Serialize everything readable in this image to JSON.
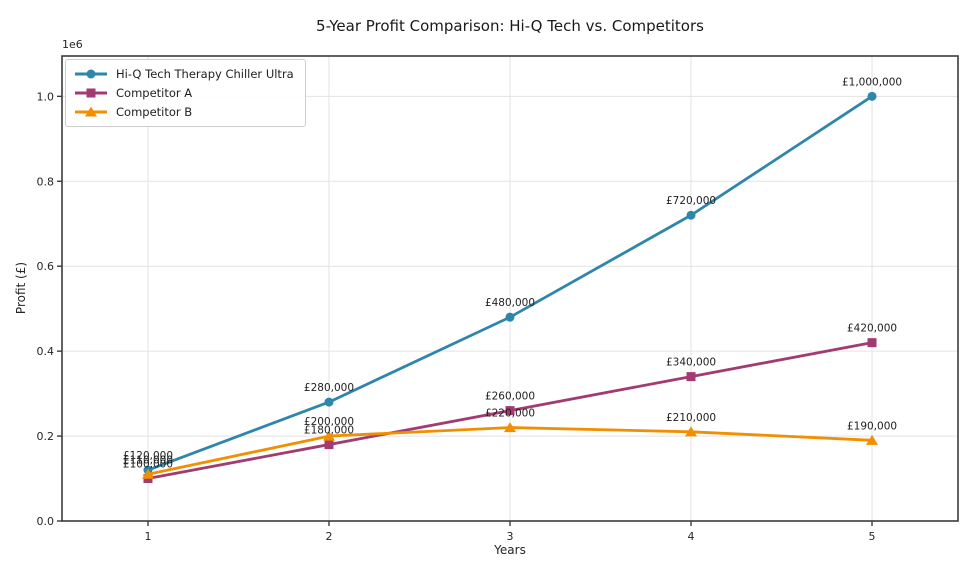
{
  "title": "5-Year Profit Comparison: Hi-Q Tech vs. Competitors",
  "chart_data": {
    "type": "line",
    "title": "5-Year Profit Comparison: Hi-Q Tech vs. Competitors",
    "xlabel": "Years",
    "ylabel": "Profit (£)",
    "y_offset_label": "1e6",
    "x": [
      1,
      2,
      3,
      4,
      5
    ],
    "xtick_labels": [
      "1",
      "2",
      "3",
      "4",
      "5"
    ],
    "ytick_values": [
      0,
      200000,
      400000,
      600000,
      800000,
      1000000
    ],
    "ytick_labels": [
      "0.0",
      "0.2",
      "0.4",
      "0.6",
      "0.8",
      "1.0"
    ],
    "xlim": [
      0.525,
      5.475
    ],
    "ylim": [
      0,
      1095000
    ],
    "grid": true,
    "legend_position": "upper-left",
    "series": [
      {
        "name": "Hi-Q Tech Therapy Chiller Ultra",
        "color": "#2E86AB",
        "marker": "circle",
        "values": [
          120000,
          280000,
          480000,
          720000,
          1000000
        ],
        "point_labels": [
          "£120,000",
          "£280,000",
          "£480,000",
          "£720,000",
          "£1,000,000"
        ]
      },
      {
        "name": "Competitor A",
        "color": "#A23B72",
        "marker": "square",
        "values": [
          100000,
          180000,
          260000,
          340000,
          420000
        ],
        "point_labels": [
          "£100,000",
          "£180,000",
          "£260,000",
          "£340,000",
          "£420,000"
        ]
      },
      {
        "name": "Competitor B",
        "color": "#F18F01",
        "marker": "triangle",
        "values": [
          110000,
          200000,
          220000,
          210000,
          190000
        ],
        "point_labels": [
          "£110,000",
          "£200,000",
          "£220,000",
          "£210,000",
          "£190,000"
        ]
      }
    ],
    "style": {
      "grid_color": "#e3e3e3",
      "spine_color": "#3b3b3b",
      "tick_text_color": "#262626",
      "annotation_color": "#1f1f1f",
      "background": "#ffffff"
    }
  }
}
